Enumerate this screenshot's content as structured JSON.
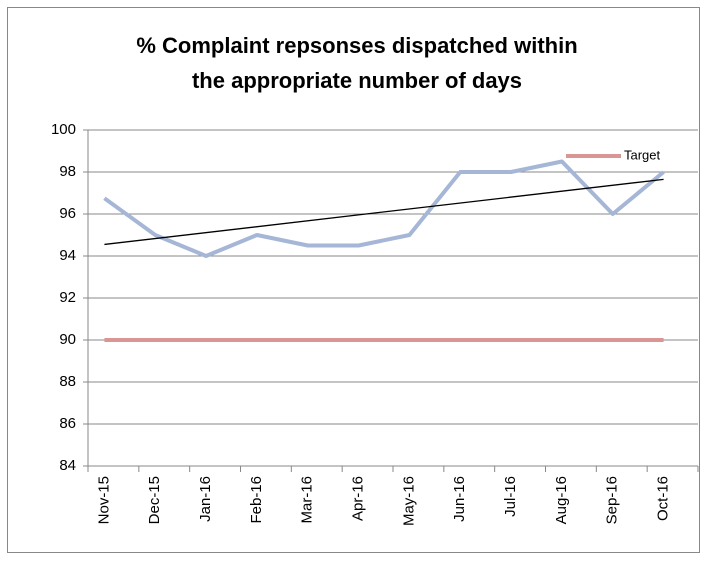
{
  "chart_data": {
    "type": "line",
    "title": [
      "% Complaint repsonses dispatched within",
      "the appropriate number of days"
    ],
    "categories": [
      "Nov-15",
      "Dec-15",
      "Jan-16",
      "Feb-16",
      "Mar-16",
      "Apr-16",
      "May-16",
      "Jun-16",
      "Jul-16",
      "Aug-16",
      "Sep-16",
      "Oct-16"
    ],
    "series": [
      {
        "color": "#a5b6d6",
        "values": [
          96.75,
          95,
          94,
          95,
          94.5,
          94.5,
          95,
          98,
          98,
          98.5,
          96,
          98
        ]
      },
      {
        "name": "Target",
        "color": "#d99694",
        "values": [
          90,
          90,
          90,
          90,
          90,
          90,
          90,
          90,
          90,
          90,
          90,
          90
        ]
      }
    ],
    "trendline": {
      "color": "#000000",
      "values": [
        94.55,
        97.65
      ]
    },
    "ylim": [
      84,
      100
    ],
    "yticks": [
      84,
      86,
      88,
      90,
      92,
      94,
      96,
      98,
      100
    ],
    "grid": true,
    "legend": "top-right"
  }
}
